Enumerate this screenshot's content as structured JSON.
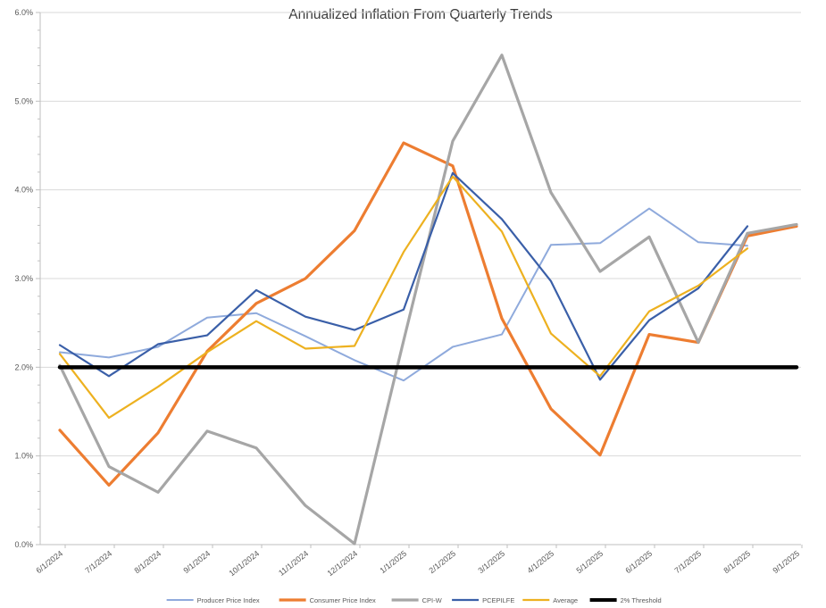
{
  "title": "Annualized Inflation From Quarterly Trends",
  "colors": {
    "producer_price_index": "#8FAADC",
    "consumer_price_index": "#ED7D31",
    "cpi_w": "#A6A6A6",
    "pcepilfe": "#3A5FA8",
    "average": "#EDB120",
    "threshold": "#000000",
    "gridline": "#D9D9D9",
    "axis": "#BFBFBF",
    "tick_text": "#595959"
  },
  "y_axis": {
    "labels": [
      "0.0%",
      "1.0%",
      "2.0%",
      "3.0%",
      "4.0%",
      "5.0%",
      "6.0%"
    ],
    "min": 0,
    "max": 6,
    "major_step": 1,
    "minor_step": 0.2
  },
  "chart_data": {
    "type": "line",
    "title": "Annualized Inflation From Quarterly Trends",
    "xlabel": "",
    "ylabel": "",
    "ylim": [
      0,
      6
    ],
    "y_tick_format": "percent_one_decimal",
    "grid": "horizontal-major",
    "legend_position": "bottom-center",
    "categories": [
      "6/1/2024",
      "7/1/2024",
      "8/1/2024",
      "9/1/2024",
      "10/1/2024",
      "11/1/2024",
      "12/1/2024",
      "1/1/2025",
      "2/1/2025",
      "3/1/2025",
      "4/1/2025",
      "5/1/2025",
      "6/1/2025",
      "7/1/2025",
      "8/1/2025",
      "9/1/2025"
    ],
    "series": [
      {
        "name": "Producer Price Index",
        "color": "#8FAADC",
        "line_width": 2,
        "values": [
          2.17,
          2.11,
          2.23,
          2.56,
          2.61,
          2.35,
          2.08,
          1.85,
          2.23,
          2.37,
          3.38,
          3.4,
          3.79,
          3.41,
          3.37,
          null
        ]
      },
      {
        "name": "Consumer Price Index",
        "color": "#ED7D31",
        "line_width": 3.2,
        "values": [
          1.29,
          0.67,
          1.26,
          2.18,
          2.72,
          3.0,
          3.54,
          4.53,
          4.27,
          2.55,
          1.53,
          1.01,
          2.37,
          2.28,
          3.48,
          3.59
        ]
      },
      {
        "name": "CPI-W",
        "color": "#A6A6A6",
        "line_width": 3.2,
        "values": [
          2.02,
          0.88,
          0.59,
          1.28,
          1.09,
          0.44,
          0.01,
          2.3,
          4.55,
          5.52,
          3.97,
          3.08,
          3.47,
          2.28,
          3.51,
          3.61
        ]
      },
      {
        "name": "PCEPILFE",
        "color": "#3A5FA8",
        "line_width": 2.2,
        "values": [
          2.25,
          1.9,
          2.26,
          2.36,
          2.87,
          2.57,
          2.42,
          2.65,
          4.19,
          3.67,
          2.97,
          1.86,
          2.53,
          2.89,
          3.59,
          null
        ]
      },
      {
        "name": "Average",
        "color": "#EDB120",
        "line_width": 2.2,
        "values": [
          2.15,
          1.43,
          1.78,
          2.17,
          2.52,
          2.21,
          2.24,
          3.3,
          4.15,
          3.53,
          2.38,
          1.9,
          2.63,
          2.92,
          3.34,
          null
        ]
      },
      {
        "name": "2% Threshold",
        "color": "#000000",
        "line_width": 4.5,
        "values": [
          2,
          2,
          2,
          2,
          2,
          2,
          2,
          2,
          2,
          2,
          2,
          2,
          2,
          2,
          2,
          2
        ]
      }
    ]
  }
}
